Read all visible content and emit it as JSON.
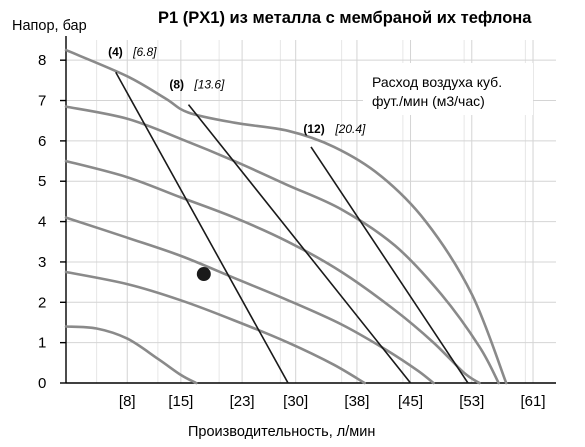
{
  "chart_data": {
    "type": "line",
    "title": "P1 (PX1) из металла с мембраной их тефлона",
    "ylabel": "Напор, бар",
    "xlabel": "Производительность, л/мин",
    "legend_note": [
      "Расход воздуха куб.",
      "фут./мин (м3/час)"
    ],
    "xlim": [
      0,
      64
    ],
    "ylim": [
      0,
      8.5
    ],
    "x_ticks": [
      {
        "value": 8,
        "label": "[8]"
      },
      {
        "value": 15,
        "label": "[15]"
      },
      {
        "value": 23,
        "label": "[23]"
      },
      {
        "value": 30,
        "label": "[30]"
      },
      {
        "value": 38,
        "label": "[38]"
      },
      {
        "value": 45,
        "label": "[45]"
      },
      {
        "value": 53,
        "label": "[53]"
      },
      {
        "value": 61,
        "label": "[61]"
      }
    ],
    "y_ticks": [
      0,
      1,
      2,
      3,
      4,
      5,
      6,
      7,
      8
    ],
    "grid": true,
    "colors": {
      "pressure_curves": "#8a8a8a",
      "air_lines": "#1a1a1a",
      "grid": "#d4d4d4"
    },
    "pressure_curves": [
      {
        "points": [
          [
            0,
            8.25
          ],
          [
            8,
            7.6
          ],
          [
            13,
            7.05
          ],
          [
            16,
            6.7
          ],
          [
            22,
            6.45
          ],
          [
            29,
            6.25
          ],
          [
            35,
            5.85
          ],
          [
            41,
            5.15
          ],
          [
            47,
            4.0
          ],
          [
            53,
            2.2
          ],
          [
            57.5,
            0.0
          ]
        ]
      },
      {
        "points": [
          [
            0,
            6.85
          ],
          [
            8,
            6.55
          ],
          [
            15,
            6.05
          ],
          [
            22,
            5.5
          ],
          [
            29,
            4.9
          ],
          [
            36,
            4.3
          ],
          [
            43,
            3.4
          ],
          [
            49,
            2.2
          ],
          [
            54,
            0.9
          ],
          [
            56.5,
            0.0
          ]
        ]
      },
      {
        "points": [
          [
            0,
            5.5
          ],
          [
            8,
            5.1
          ],
          [
            15,
            4.6
          ],
          [
            22,
            4.1
          ],
          [
            29,
            3.5
          ],
          [
            36,
            2.75
          ],
          [
            43,
            1.8
          ],
          [
            48,
            1.0
          ],
          [
            52,
            0.25
          ],
          [
            54,
            0.0
          ]
        ]
      },
      {
        "points": [
          [
            0,
            4.1
          ],
          [
            8,
            3.6
          ],
          [
            15,
            3.15
          ],
          [
            22,
            2.6
          ],
          [
            29,
            2.05
          ],
          [
            36,
            1.45
          ],
          [
            42,
            0.8
          ],
          [
            46,
            0.3
          ],
          [
            48,
            0.0
          ]
        ]
      },
      {
        "points": [
          [
            0,
            2.75
          ],
          [
            8,
            2.45
          ],
          [
            15,
            2.05
          ],
          [
            22,
            1.55
          ],
          [
            29,
            1.0
          ],
          [
            35,
            0.45
          ],
          [
            39,
            0.0
          ]
        ]
      },
      {
        "points": [
          [
            0,
            1.4
          ],
          [
            4,
            1.35
          ],
          [
            8,
            1.1
          ],
          [
            12,
            0.6
          ],
          [
            15,
            0.2
          ],
          [
            17,
            0.0
          ]
        ]
      }
    ],
    "air_lines": [
      {
        "label": "(4)",
        "m3": "[6.8]",
        "points": [
          [
            6.5,
            7.7
          ],
          [
            29,
            0.0
          ]
        ],
        "label_at": [
          5.5,
          8.1
        ]
      },
      {
        "label": "(8)",
        "m3": "[13.6]",
        "points": [
          [
            16,
            6.9
          ],
          [
            45,
            0.0
          ]
        ],
        "label_at": [
          13.5,
          7.3
        ]
      },
      {
        "label": "(12)",
        "m3": "[20.4]",
        "points": [
          [
            32,
            5.85
          ],
          [
            52.5,
            0.0
          ]
        ],
        "label_at": [
          31,
          6.2
        ]
      }
    ],
    "marker_point": {
      "x": 18,
      "y": 2.7
    }
  }
}
